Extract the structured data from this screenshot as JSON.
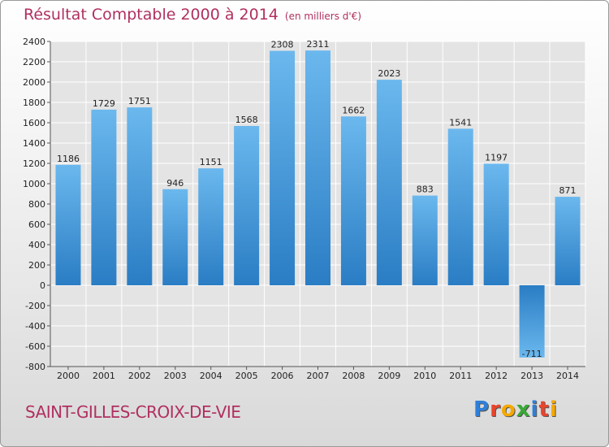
{
  "title": "Résultat Comptable 2000 à 2014",
  "subtitle": "(en milliers d'€)",
  "city": "SAINT-GILLES-CROIX-DE-VIE",
  "logo": {
    "text": "Proxiti",
    "letter_colors": [
      "#2f7fd8",
      "#e8442c",
      "#f6a800",
      "#39a935",
      "#2f7fd8",
      "#e8442c",
      "#f6a800"
    ]
  },
  "colors": {
    "bar_light": "#6bb8ee",
    "bar_dark": "#2a7dc4",
    "title": "#b03060"
  },
  "chart_data": {
    "type": "bar",
    "title": "Résultat Comptable 2000 à 2014",
    "subtitle": "(en milliers d'€)",
    "xlabel": "",
    "ylabel": "",
    "categories": [
      "2000",
      "2001",
      "2002",
      "2003",
      "2004",
      "2005",
      "2006",
      "2007",
      "2008",
      "2009",
      "2010",
      "2011",
      "2012",
      "2013",
      "2014"
    ],
    "values": [
      1186,
      1729,
      1751,
      946,
      1151,
      1568,
      2308,
      2311,
      1662,
      2023,
      883,
      1541,
      1197,
      -711,
      871
    ],
    "ylim": [
      -800,
      2400
    ],
    "yticks": [
      -800,
      -600,
      -400,
      -200,
      0,
      200,
      400,
      600,
      800,
      1000,
      1200,
      1400,
      1600,
      1800,
      2000,
      2200,
      2400
    ],
    "grid": true,
    "legend": "none"
  }
}
